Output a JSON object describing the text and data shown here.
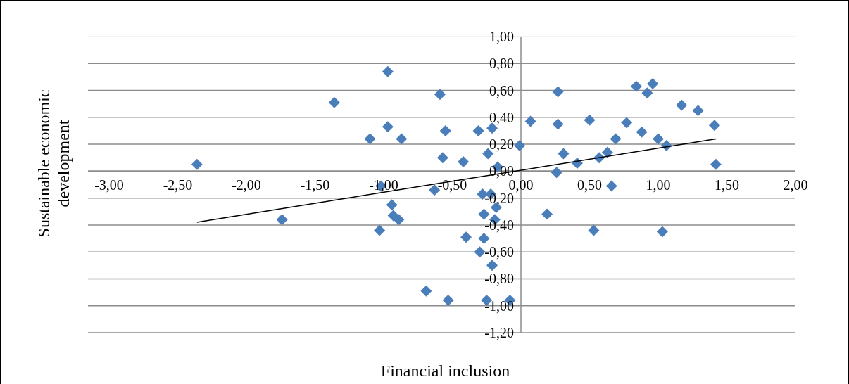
{
  "chart_data": {
    "type": "scatter",
    "xlabel": "Financial inclusion",
    "ylabel": "Sustainable economic development",
    "xlim": [
      -3,
      2
    ],
    "ylim": [
      -1.2,
      1
    ],
    "xticks": [
      {
        "value": -3,
        "label": "-3,00"
      },
      {
        "value": -2.5,
        "label": "-2,50"
      },
      {
        "value": -2,
        "label": "-2,00"
      },
      {
        "value": -1.5,
        "label": "-1,50"
      },
      {
        "value": -1,
        "label": "-1,00"
      },
      {
        "value": -0.5,
        "label": "-0,50"
      },
      {
        "value": 0,
        "label": "0,00"
      },
      {
        "value": 0.5,
        "label": "0,50"
      },
      {
        "value": 1,
        "label": "1,00"
      },
      {
        "value": 1.5,
        "label": "1,50"
      },
      {
        "value": 2,
        "label": "2,00"
      }
    ],
    "yticks": [
      {
        "value": -1.2,
        "label": "-1,20"
      },
      {
        "value": -1,
        "label": "-1,00"
      },
      {
        "value": -0.8,
        "label": "-0,80"
      },
      {
        "value": -0.6,
        "label": "-0,60"
      },
      {
        "value": -0.4,
        "label": "-0,40"
      },
      {
        "value": -0.2,
        "label": "-0,20"
      },
      {
        "value": 0,
        "label": "0,00"
      },
      {
        "value": 0.2,
        "label": "0,20"
      },
      {
        "value": 0.4,
        "label": "0,40"
      },
      {
        "value": 0.6,
        "label": "0,60"
      },
      {
        "value": 0.8,
        "label": "0,80"
      },
      {
        "value": 1,
        "label": "1,00"
      }
    ],
    "grid": "y",
    "marker": "diamond",
    "series": [
      {
        "type": "scatter",
        "color": "#4a7ebb",
        "x": [
          -2.36,
          -1.74,
          -1.36,
          -0.97,
          -1.1,
          -0.97,
          -0.87,
          -1.02,
          -0.94,
          -0.93,
          -0.89,
          -1.03,
          -0.59,
          -0.55,
          -0.57,
          -0.42,
          -0.63,
          -0.31,
          -0.21,
          -0.24,
          -0.17,
          -0.28,
          -0.22,
          -0.18,
          -0.27,
          -0.19,
          -0.4,
          -0.27,
          -0.3,
          -0.21,
          -0.69,
          -0.53,
          -0.25,
          -0.08,
          0.19,
          -0.01,
          0.07,
          0.27,
          0.27,
          0.31,
          0.26,
          0.41,
          0.5,
          0.57,
          0.63,
          0.69,
          0.77,
          0.88,
          0.84,
          0.92,
          0.96,
          1.0,
          1.06,
          1.17,
          1.29,
          1.41,
          1.42,
          0.66,
          0.53,
          1.03
        ],
        "values": [
          0.05,
          -0.36,
          0.51,
          0.74,
          0.24,
          0.33,
          0.24,
          -0.11,
          -0.25,
          -0.33,
          -0.36,
          -0.44,
          0.57,
          0.3,
          0.1,
          0.07,
          -0.14,
          0.3,
          0.32,
          0.13,
          0.03,
          -0.17,
          -0.17,
          -0.27,
          -0.32,
          -0.36,
          -0.49,
          -0.5,
          -0.6,
          -0.7,
          -0.89,
          -0.96,
          -0.96,
          -0.96,
          -0.32,
          0.19,
          0.37,
          0.59,
          0.35,
          0.13,
          -0.01,
          0.06,
          0.38,
          0.1,
          0.14,
          0.24,
          0.36,
          0.29,
          0.63,
          0.58,
          0.65,
          0.24,
          0.19,
          0.49,
          0.45,
          0.34,
          0.05,
          -0.11,
          -0.44,
          -0.45
        ]
      },
      {
        "type": "line",
        "color": "#000000",
        "x": [
          -2.36,
          1.42
        ],
        "values": [
          -0.38,
          0.24
        ],
        "marker": "none"
      }
    ]
  }
}
